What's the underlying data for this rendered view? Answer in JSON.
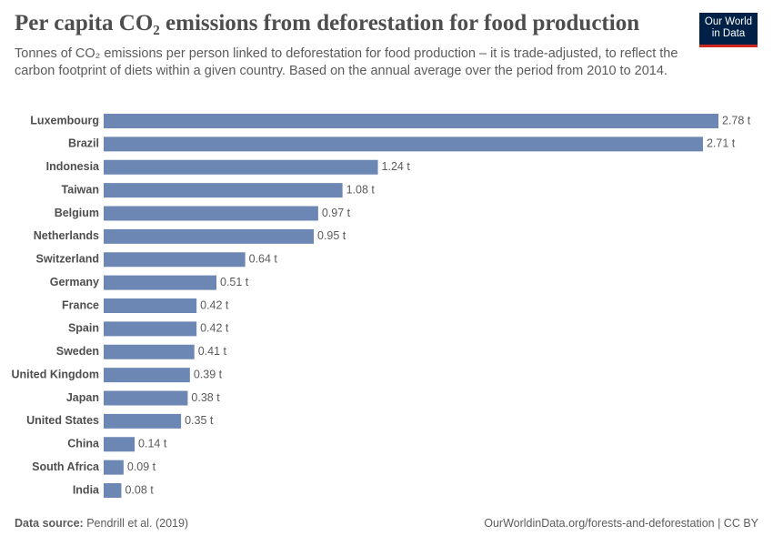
{
  "chart_data": {
    "type": "bar",
    "orientation": "horizontal",
    "title": "Per capita CO₂ emissions from deforestation for food production",
    "subtitle": "Tonnes of CO₂ emissions per person linked to deforestation for food production – it is trade-adjusted, to reflect the carbon footprint of diets within a given country. Based on the annual average over the period from 2010 to 2014.",
    "categories": [
      "Luxembourg",
      "Brazil",
      "Indonesia",
      "Taiwan",
      "Belgium",
      "Netherlands",
      "Switzerland",
      "Germany",
      "France",
      "Spain",
      "Sweden",
      "United Kingdom",
      "Japan",
      "United States",
      "China",
      "South Africa",
      "India"
    ],
    "values": [
      2.78,
      2.71,
      1.24,
      1.08,
      0.97,
      0.95,
      0.64,
      0.51,
      0.42,
      0.42,
      0.41,
      0.39,
      0.38,
      0.35,
      0.14,
      0.09,
      0.08
    ],
    "value_labels": [
      "2.78 t",
      "2.71 t",
      "1.24 t",
      "1.08 t",
      "0.97 t",
      "0.95 t",
      "0.64 t",
      "0.51 t",
      "0.42 t",
      "0.42 t",
      "0.41 t",
      "0.39 t",
      "0.38 t",
      "0.35 t",
      "0.14 t",
      "0.09 t",
      "0.08 t"
    ],
    "color": "#6d87b4",
    "source_label": "Data source:",
    "source": "Pendrill et al. (2019)",
    "url": "OurWorldinData.org/forests-and-deforestation | CC BY",
    "logo": [
      "Our World",
      "in Data"
    ]
  }
}
